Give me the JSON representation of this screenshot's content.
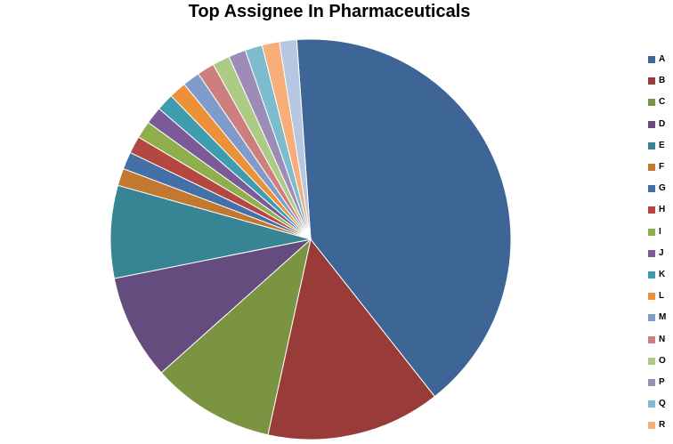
{
  "chart_data": {
    "type": "pie",
    "title": "Top Assignee In Pharmaceuticals",
    "legend_position": "right",
    "slices": [
      {
        "label": "A",
        "value": 40.6,
        "color": "#3D6596"
      },
      {
        "label": "B",
        "value": 14.1,
        "color": "#983B39"
      },
      {
        "label": "C",
        "value": 10.0,
        "color": "#7B9442"
      },
      {
        "label": "D",
        "value": 8.5,
        "color": "#644C7E"
      },
      {
        "label": "E",
        "value": 7.5,
        "color": "#378594"
      },
      {
        "label": "F",
        "value": 1.4,
        "color": "#C37830"
      },
      {
        "label": "G",
        "value": 1.4,
        "color": "#4470A7"
      },
      {
        "label": "H",
        "value": 1.4,
        "color": "#B54743"
      },
      {
        "label": "I",
        "value": 1.4,
        "color": "#8FAF4C"
      },
      {
        "label": "J",
        "value": 1.4,
        "color": "#7A5B98"
      },
      {
        "label": "K",
        "value": 1.4,
        "color": "#3E9CAF"
      },
      {
        "label": "L",
        "value": 1.4,
        "color": "#EC903A"
      },
      {
        "label": "M",
        "value": 1.4,
        "color": "#7E9BCA"
      },
      {
        "label": "N",
        "value": 1.4,
        "color": "#CC7F7D"
      },
      {
        "label": "O",
        "value": 1.4,
        "color": "#AECB85"
      },
      {
        "label": "P",
        "value": 1.4,
        "color": "#9E8CB8"
      },
      {
        "label": "Q",
        "value": 1.4,
        "color": "#7DBCCC"
      },
      {
        "label": "R",
        "value": 1.4,
        "color": "#F7AD78"
      },
      {
        "label": "",
        "value": 1.4,
        "color": "#B8C7E1"
      }
    ]
  }
}
